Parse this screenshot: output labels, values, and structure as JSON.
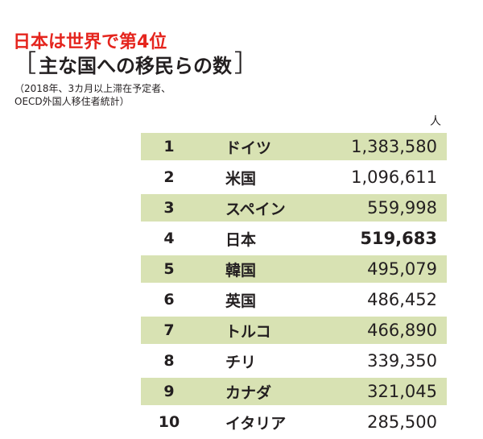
{
  "headline": "日本は世界で第4位",
  "subtitle": {
    "open_bracket": "［",
    "text": "主な国への移民らの数",
    "close_bracket": "］"
  },
  "note": {
    "line1": "（2018年、3カ月以上滞在予定者、",
    "line2": "OECD外国人移住者統計）"
  },
  "unit": "人",
  "colors": {
    "headline": "#e5251e",
    "row_shade": "#d8e2b3",
    "text": "#231f20"
  },
  "chart_data": {
    "type": "table",
    "title": "主な国への移民らの数",
    "unit": "人",
    "columns": [
      "rank",
      "country",
      "migrants"
    ],
    "rows": [
      {
        "rank": "1",
        "country": "ドイツ",
        "value": "1,383,580"
      },
      {
        "rank": "2",
        "country": "米国",
        "value": "1,096,611"
      },
      {
        "rank": "3",
        "country": "スペイン",
        "value": "559,998"
      },
      {
        "rank": "4",
        "country": "日本",
        "value": "519,683"
      },
      {
        "rank": "5",
        "country": "韓国",
        "value": "495,079"
      },
      {
        "rank": "6",
        "country": "英国",
        "value": "486,452"
      },
      {
        "rank": "7",
        "country": "トルコ",
        "value": "466,890"
      },
      {
        "rank": "8",
        "country": "チリ",
        "value": "339,350"
      },
      {
        "rank": "9",
        "country": "カナダ",
        "value": "321,045"
      },
      {
        "rank": "10",
        "country": "イタリア",
        "value": "285,500"
      }
    ],
    "highlight_rank": "4"
  }
}
